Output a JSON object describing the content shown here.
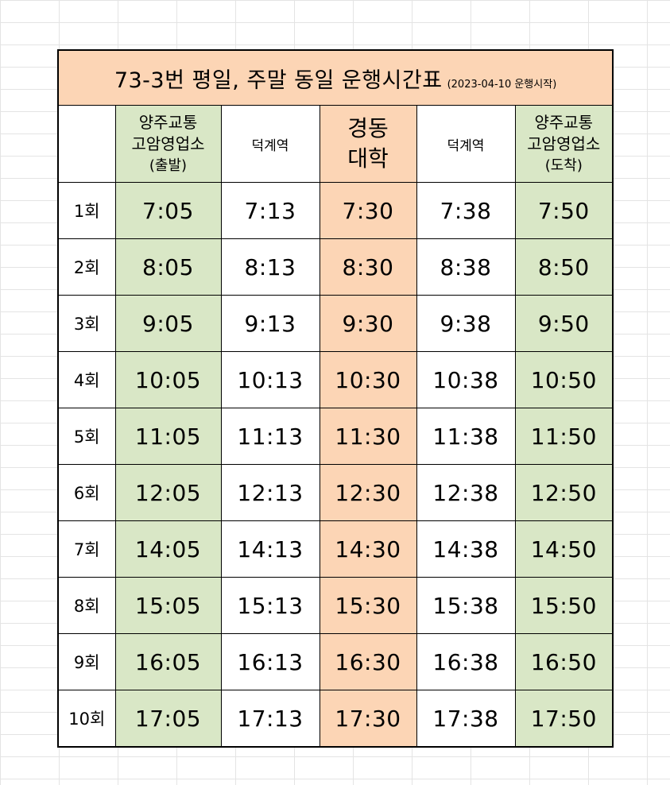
{
  "title": {
    "main": "73-3번 평일, 주말 동일 운행시간표",
    "sub": "(2023-04-10 운행시작)"
  },
  "columns": [
    {
      "line1": "",
      "line2": "",
      "line3": ""
    },
    {
      "line1": "양주교통",
      "line2": "고암영업소",
      "line3": "(출발)"
    },
    {
      "line1": "덕계역",
      "line2": "",
      "line3": ""
    },
    {
      "line1": "경동",
      "line2": "대학",
      "line3": ""
    },
    {
      "line1": "덕계역",
      "line2": "",
      "line3": ""
    },
    {
      "line1": "양주교통",
      "line2": "고암영업소",
      "line3": "(도착)"
    }
  ],
  "rows": [
    {
      "trip": "1회",
      "times": [
        "7:05",
        "7:13",
        "7:30",
        "7:38",
        "7:50"
      ]
    },
    {
      "trip": "2회",
      "times": [
        "8:05",
        "8:13",
        "8:30",
        "8:38",
        "8:50"
      ]
    },
    {
      "trip": "3회",
      "times": [
        "9:05",
        "9:13",
        "9:30",
        "9:38",
        "9:50"
      ]
    },
    {
      "trip": "4회",
      "times": [
        "10:05",
        "10:13",
        "10:30",
        "10:38",
        "10:50"
      ]
    },
    {
      "trip": "5회",
      "times": [
        "11:05",
        "11:13",
        "11:30",
        "11:38",
        "11:50"
      ]
    },
    {
      "trip": "6회",
      "times": [
        "12:05",
        "12:13",
        "12:30",
        "12:38",
        "12:50"
      ]
    },
    {
      "trip": "7회",
      "times": [
        "14:05",
        "14:13",
        "14:30",
        "14:38",
        "14:50"
      ]
    },
    {
      "trip": "8회",
      "times": [
        "15:05",
        "15:13",
        "15:30",
        "15:38",
        "15:50"
      ]
    },
    {
      "trip": "9회",
      "times": [
        "16:05",
        "16:13",
        "16:30",
        "16:38",
        "16:50"
      ]
    },
    {
      "trip": "10회",
      "times": [
        "17:05",
        "17:13",
        "17:30",
        "17:38",
        "17:50"
      ]
    }
  ],
  "colors": {
    "terminal_fill": "#d9e7c6",
    "university_fill": "#fcd5b5",
    "title_fill": "#fcd5b5"
  }
}
